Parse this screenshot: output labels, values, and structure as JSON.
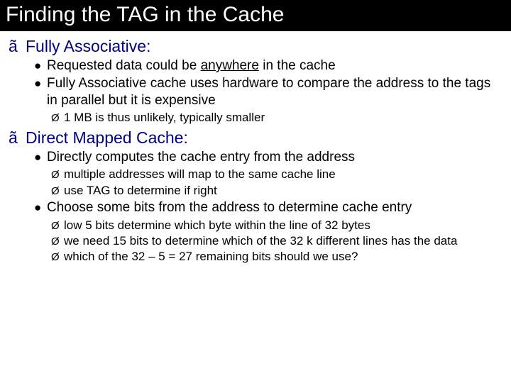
{
  "title": "Finding the TAG in the Cache",
  "section1": {
    "heading": "Fully Associative:",
    "b1_pre": "Requested data could be ",
    "b1_u": "anywhere",
    "b1_post": " in the cache",
    "b2": "Fully Associative cache uses hardware to compare the address to the tags in parallel but it is expensive",
    "b2_sub1": "1 MB is thus unlikely, typically smaller"
  },
  "section2": {
    "heading": "Direct Mapped Cache:",
    "b1": "Directly computes the cache entry from the address",
    "b1_sub1": "multiple addresses will map to the same cache line",
    "b1_sub2": "use TAG to determine if right",
    "b2": "Choose some bits from the address to determine cache entry",
    "b2_sub1": "low 5 bits determine which byte within the line of 32 bytes",
    "b2_sub2": "we need 15 bits to determine which of the 32 k different lines has the data",
    "b2_sub3": "which of the 32 – 5 = 27 remaining bits should we use?"
  }
}
